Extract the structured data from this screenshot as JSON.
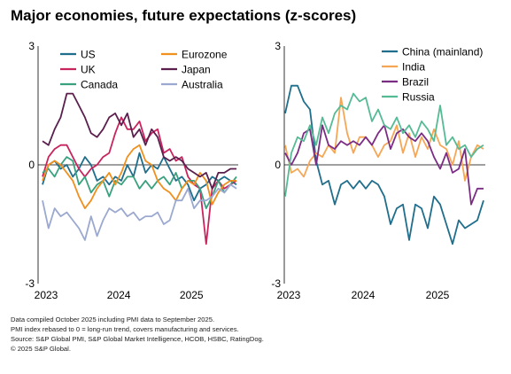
{
  "title": "Major economies, future expectations (z-scores)",
  "footnotes": [
    "Data compiled October 2025 including PMI data to September 2025.",
    "PMI index rebased to 0 = long-run trend, covers manufacturing and services.",
    "Source: S&P Global PMI, S&P Global Market Intelligence, HCOB, HSBC, RatingDog.",
    "© 2025 S&P Global."
  ],
  "chart_data": [
    {
      "type": "line",
      "x_ticks": [
        "2023",
        "2024",
        "2025"
      ],
      "y_ticks": [
        "3",
        "0",
        "-3"
      ],
      "ylim": [
        -3,
        3
      ],
      "grid": false,
      "legend_position": "top",
      "x_start": "2023-01",
      "x_end": "2025-09",
      "series": [
        {
          "name": "US",
          "color": "#1f6e8c",
          "values": [
            -0.5,
            0.0,
            0.1,
            -0.1,
            0.0,
            -0.3,
            -0.1,
            0.2,
            0.0,
            -0.4,
            -0.3,
            -0.5,
            -0.3,
            -0.4,
            0.0,
            -0.3,
            0.3,
            -0.2,
            0.0,
            -0.1,
            0.2,
            -0.1,
            -0.4,
            -0.3,
            -0.5,
            -0.9,
            -0.6,
            -0.5,
            -0.3,
            -0.4,
            -0.3,
            -0.4,
            -0.5
          ]
        },
        {
          "name": "UK",
          "color": "#c8245e",
          "values": [
            -0.3,
            0.2,
            0.4,
            0.5,
            0.5,
            0.2,
            -0.1,
            -0.3,
            -0.1,
            0.0,
            0.2,
            0.3,
            0.8,
            1.2,
            0.9,
            0.9,
            1.1,
            0.6,
            0.8,
            0.9,
            0.3,
            0.4,
            0.1,
            0.2,
            -0.3,
            -0.5,
            -0.6,
            -2.0,
            -0.6,
            -0.4,
            -0.6,
            -0.5,
            -0.4
          ]
        },
        {
          "name": "Canada",
          "color": "#3aa17e",
          "values": [
            -0.2,
            -0.1,
            -0.3,
            0.0,
            0.2,
            0.1,
            -0.5,
            -0.3,
            -0.7,
            -0.5,
            -0.4,
            -0.8,
            -0.4,
            -0.5,
            -0.3,
            -0.3,
            -0.6,
            -0.4,
            -0.6,
            -0.4,
            -0.3,
            -0.5,
            -0.2,
            -0.6,
            -0.4,
            -0.4,
            -0.6,
            -1.1,
            -0.8,
            -0.4,
            -0.7,
            -0.5,
            -0.3
          ]
        },
        {
          "name": "Eurozone",
          "color": "#f0901e",
          "values": [
            -0.4,
            0.0,
            0.1,
            0.0,
            -0.2,
            -0.4,
            -0.8,
            -1.1,
            -0.9,
            -0.6,
            -0.4,
            -0.2,
            -0.5,
            -0.2,
            0.2,
            0.4,
            0.5,
            0.1,
            0.0,
            -0.4,
            -0.6,
            -0.7,
            -0.9,
            -0.6,
            -0.4,
            -0.5,
            -0.2,
            -0.4,
            -1.0,
            -0.7,
            -0.5,
            -0.4,
            -0.4
          ]
        },
        {
          "name": "Japan",
          "color": "#5a1f4d",
          "values": [
            0.6,
            0.5,
            0.9,
            1.2,
            1.8,
            1.8,
            1.5,
            1.2,
            0.8,
            0.7,
            0.9,
            1.2,
            1.3,
            1.0,
            1.3,
            0.7,
            0.9,
            0.5,
            0.9,
            0.7,
            0.2,
            0.1,
            0.2,
            0.1,
            -0.1,
            -0.2,
            -0.3,
            -0.2,
            -0.6,
            -0.2,
            -0.2,
            -0.1,
            -0.1
          ]
        },
        {
          "name": "Australia",
          "color": "#9ba8cf",
          "values": [
            -0.9,
            -1.6,
            -1.1,
            -1.3,
            -1.2,
            -1.4,
            -1.6,
            -1.9,
            -1.3,
            -1.8,
            -1.4,
            -1.1,
            -1.2,
            -1.1,
            -1.3,
            -1.2,
            -1.4,
            -1.3,
            -1.3,
            -1.2,
            -1.5,
            -1.4,
            -0.9,
            -0.9,
            -0.6,
            -1.1,
            -0.9,
            -0.9,
            -0.8,
            -0.6,
            -0.7,
            -0.5,
            -0.6
          ]
        }
      ]
    },
    {
      "type": "line",
      "x_ticks": [
        "2023",
        "2024",
        "2025"
      ],
      "y_ticks": [
        "3",
        "0",
        "-3"
      ],
      "ylim": [
        -3,
        3
      ],
      "grid": false,
      "legend_position": "top-right",
      "x_start": "2023-01",
      "x_end": "2025-09",
      "series": [
        {
          "name": "China (mainland)",
          "color": "#1f6e8c",
          "values": [
            1.3,
            2.0,
            2.0,
            1.6,
            1.4,
            0.1,
            -0.5,
            -0.4,
            -1.0,
            -0.5,
            -0.4,
            -0.6,
            -0.4,
            -0.6,
            -0.4,
            -0.5,
            -0.8,
            -1.5,
            -1.1,
            -1.0,
            -1.9,
            -1.0,
            -1.1,
            -1.6,
            -0.8,
            -1.0,
            -1.5,
            -2.0,
            -1.4,
            -1.6,
            -1.5,
            -1.4,
            -0.9
          ]
        },
        {
          "name": "India",
          "color": "#f5a756",
          "values": [
            0.5,
            -0.2,
            -0.1,
            -0.3,
            0.1,
            0.3,
            0.2,
            0.5,
            0.3,
            1.7,
            0.8,
            0.3,
            0.7,
            0.7,
            0.5,
            0.2,
            0.5,
            0.6,
            1.0,
            0.3,
            0.8,
            0.2,
            0.7,
            0.4,
            0.9,
            0.5,
            0.4,
            0.0,
            0.6,
            -0.4,
            0.2,
            0.5,
            0.4
          ]
        },
        {
          "name": "Brazil",
          "color": "#7b2d84",
          "values": [
            0.3,
            0.0,
            0.3,
            0.8,
            0.9,
            0.0,
            1.0,
            0.5,
            0.4,
            0.6,
            0.5,
            0.6,
            0.5,
            0.7,
            0.5,
            0.8,
            1.0,
            0.4,
            0.8,
            0.9,
            0.7,
            0.6,
            0.8,
            0.6,
            0.2,
            -0.1,
            0.3,
            -0.2,
            -0.1,
            0.4,
            -1.0,
            -0.6,
            -0.6
          ]
        },
        {
          "name": "Russia",
          "color": "#55bb95",
          "values": [
            -0.8,
            0.3,
            0.7,
            0.6,
            1.0,
            0.5,
            1.2,
            0.8,
            1.3,
            1.5,
            1.4,
            1.8,
            1.6,
            1.7,
            1.1,
            1.4,
            1.0,
            0.9,
            1.2,
            0.8,
            1.0,
            0.7,
            1.1,
            0.9,
            0.6,
            1.5,
            0.5,
            0.7,
            0.4,
            0.5,
            0.2,
            0.4,
            0.5
          ]
        }
      ]
    }
  ]
}
